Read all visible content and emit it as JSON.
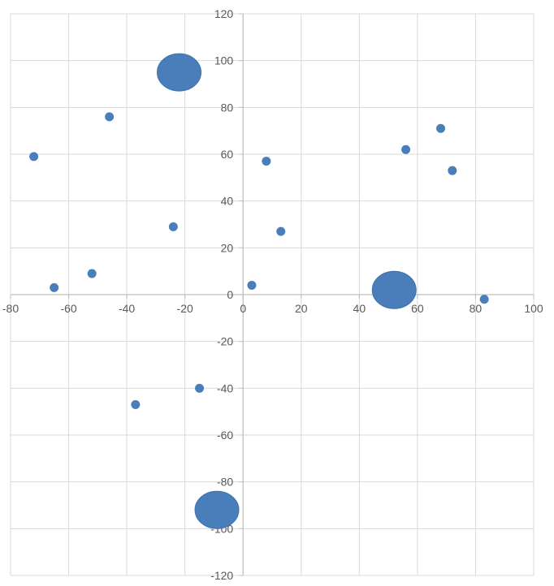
{
  "chart_data": {
    "type": "scatter",
    "title": "",
    "xlabel": "",
    "ylabel": "",
    "xlim": [
      -80,
      100
    ],
    "ylim": [
      -120,
      120
    ],
    "x_ticks": [
      -80,
      -60,
      -40,
      -20,
      0,
      20,
      40,
      60,
      80,
      100
    ],
    "y_ticks": [
      -120,
      -100,
      -80,
      -60,
      -40,
      -20,
      0,
      20,
      40,
      60,
      80,
      100,
      120
    ],
    "grid": true,
    "legend": "none",
    "colors": {
      "marker": "#4a7ebb",
      "grid": "#d9d9d9",
      "axis": "#bfbfbf",
      "text": "#595959"
    },
    "series": [
      {
        "points": [
          {
            "x": -72,
            "y": 59,
            "size": "small"
          },
          {
            "x": -65,
            "y": 3,
            "size": "small"
          },
          {
            "x": -52,
            "y": 9,
            "size": "small"
          },
          {
            "x": -46,
            "y": 76,
            "size": "small"
          },
          {
            "x": -37,
            "y": -47,
            "size": "small"
          },
          {
            "x": -24,
            "y": 29,
            "size": "small"
          },
          {
            "x": -22,
            "y": 95,
            "size": "large"
          },
          {
            "x": -15,
            "y": -40,
            "size": "small"
          },
          {
            "x": -9,
            "y": -92,
            "size": "large"
          },
          {
            "x": 3,
            "y": 4,
            "size": "small"
          },
          {
            "x": 8,
            "y": 57,
            "size": "small"
          },
          {
            "x": 13,
            "y": 27,
            "size": "small"
          },
          {
            "x": 52,
            "y": 2,
            "size": "large"
          },
          {
            "x": 56,
            "y": 62,
            "size": "small"
          },
          {
            "x": 68,
            "y": 71,
            "size": "small"
          },
          {
            "x": 72,
            "y": 53,
            "size": "small"
          },
          {
            "x": 83,
            "y": -2,
            "size": "small"
          }
        ]
      }
    ]
  }
}
